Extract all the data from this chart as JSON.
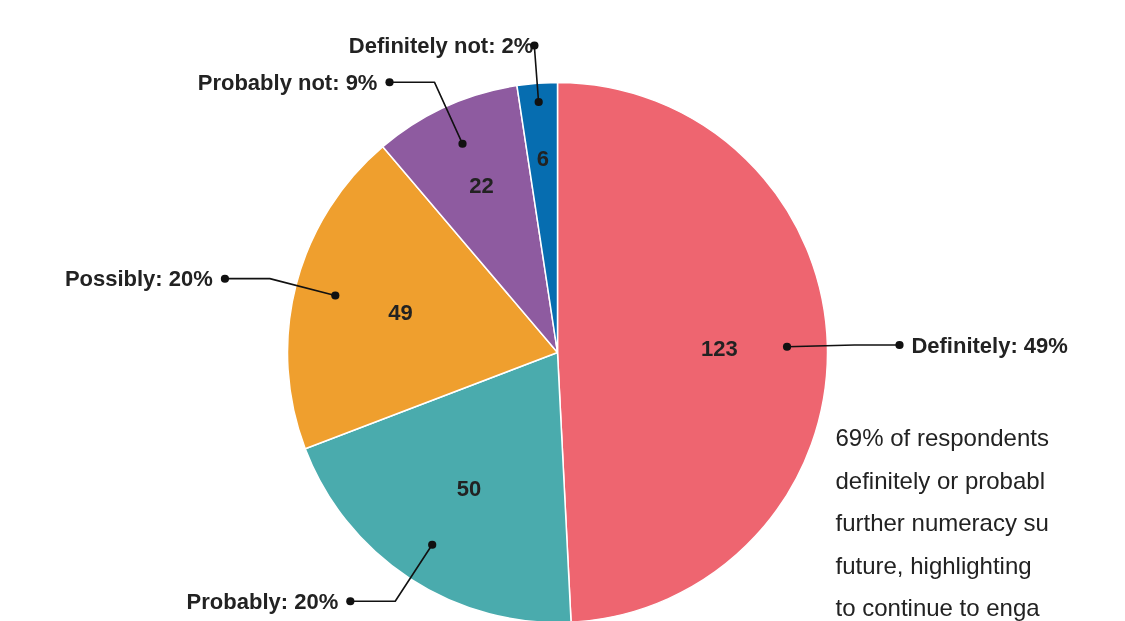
{
  "chart_data": {
    "type": "pie",
    "categories": [
      "Definitely: 49%",
      "Probably: 20%",
      "Possibly: 20%",
      "Probably not: 9%",
      "Definitely not: 2%"
    ],
    "values": [
      123,
      50,
      49,
      22,
      6
    ],
    "colors": [
      "#ee6570",
      "#4aabad",
      "#ef9f2e",
      "#8e5ba0",
      "#066db0"
    ],
    "data_labels": true,
    "annotations": [
      "69% of respondents\ndefinitely or probabl\nfurther numeracy su\nfuture, highlighting\nto continue to enga"
    ]
  }
}
